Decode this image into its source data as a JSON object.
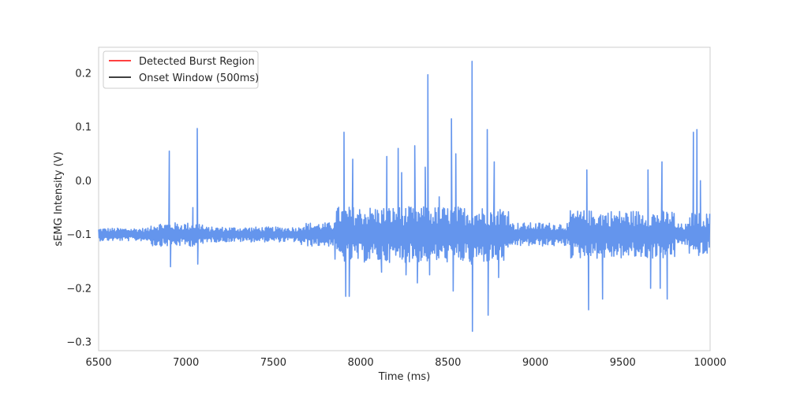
{
  "chart_data": {
    "type": "line",
    "title": "",
    "xlabel": "Time (ms)",
    "ylabel": "sEMG Intensity (V)",
    "xlim": [
      6500,
      10000
    ],
    "ylim": [
      -0.316,
      0.248
    ],
    "x_ticks": [
      6500,
      7000,
      7500,
      8000,
      8500,
      9000,
      9500,
      10000
    ],
    "y_ticks": [
      -0.3,
      -0.2,
      -0.1,
      0.0,
      0.1,
      0.2
    ],
    "y_tick_labels": [
      "−0.3",
      "−0.2",
      "−0.1",
      "0.0",
      "0.1",
      "0.2"
    ],
    "grid": false,
    "legend_position": "top-left",
    "legend": [
      {
        "label": "Detected Burst Region",
        "color": "#ff0000"
      },
      {
        "label": "Onset Window (500ms)",
        "color": "#000000"
      }
    ],
    "series": [
      {
        "color": "#6495ed",
        "baseline": -0.1,
        "peaks": [
          [
            6905,
            0.055
          ],
          [
            6912,
            -0.16
          ],
          [
            7040,
            -0.05
          ],
          [
            7065,
            0.097
          ],
          [
            7068,
            -0.155
          ],
          [
            7905,
            0.09
          ],
          [
            7915,
            -0.215
          ],
          [
            7935,
            -0.215
          ],
          [
            7955,
            0.04
          ],
          [
            8120,
            -0.17
          ],
          [
            8150,
            0.045
          ],
          [
            8215,
            0.06
          ],
          [
            8235,
            0.015
          ],
          [
            8260,
            -0.175
          ],
          [
            8310,
            0.065
          ],
          [
            8325,
            -0.19
          ],
          [
            8370,
            0.025
          ],
          [
            8385,
            0.197
          ],
          [
            8395,
            -0.175
          ],
          [
            8450,
            -0.03
          ],
          [
            8520,
            0.115
          ],
          [
            8530,
            -0.205
          ],
          [
            8545,
            0.05
          ],
          [
            8625,
            -0.15
          ],
          [
            8635,
            -0.155
          ],
          [
            8638,
            0.222
          ],
          [
            8640,
            -0.28
          ],
          [
            8700,
            -0.1
          ],
          [
            8725,
            0.095
          ],
          [
            8730,
            -0.25
          ],
          [
            8765,
            0.035
          ],
          [
            8790,
            -0.18
          ],
          [
            9295,
            0.02
          ],
          [
            9305,
            -0.24
          ],
          [
            9385,
            -0.22
          ],
          [
            9645,
            0.02
          ],
          [
            9660,
            -0.2
          ],
          [
            9715,
            -0.2
          ],
          [
            9725,
            0.035
          ],
          [
            9755,
            -0.22
          ],
          [
            9905,
            0.09
          ],
          [
            9925,
            0.095
          ],
          [
            9945,
            0.0
          ],
          [
            9960,
            -0.135
          ]
        ]
      }
    ]
  }
}
